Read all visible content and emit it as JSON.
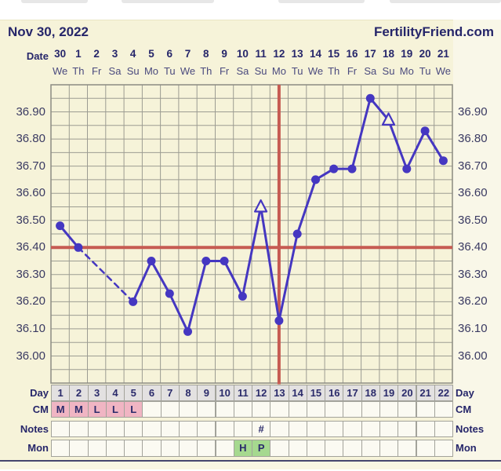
{
  "header": {
    "title": "Nov 30, 2022",
    "site": "FertilityFriend.com"
  },
  "axes": {
    "date_row_label": "Date",
    "dates": [
      "30",
      "1",
      "2",
      "3",
      "4",
      "5",
      "6",
      "7",
      "8",
      "9",
      "10",
      "11",
      "12",
      "13",
      "14",
      "15",
      "16",
      "17",
      "18",
      "19",
      "20",
      "21"
    ],
    "weekdays": [
      "We",
      "Th",
      "Fr",
      "Sa",
      "Su",
      "Mo",
      "Tu",
      "We",
      "Th",
      "Fr",
      "Sa",
      "Su",
      "Mo",
      "Tu",
      "We",
      "Th",
      "Fr",
      "Sa",
      "Su",
      "Mo",
      "Tu",
      "We"
    ],
    "temp_tick_labels": [
      "36.90",
      "36.80",
      "36.70",
      "36.60",
      "36.50",
      "36.40",
      "36.30",
      "36.20",
      "36.10",
      "36.00"
    ]
  },
  "chart_data": {
    "type": "line",
    "title": "Basal body temperature chart starting Nov 30, 2022",
    "x_cycle_days": [
      1,
      2,
      3,
      4,
      5,
      6,
      7,
      8,
      9,
      10,
      11,
      12,
      13,
      14,
      15,
      16,
      17,
      18,
      19,
      20,
      21,
      22
    ],
    "x_dates": [
      "30",
      "1",
      "2",
      "3",
      "4",
      "5",
      "6",
      "7",
      "8",
      "9",
      "10",
      "11",
      "12",
      "13",
      "14",
      "15",
      "16",
      "17",
      "18",
      "19",
      "20",
      "21"
    ],
    "temps": [
      36.48,
      36.4,
      null,
      null,
      36.2,
      36.35,
      36.23,
      36.09,
      36.35,
      36.35,
      36.22,
      36.55,
      36.13,
      36.45,
      36.65,
      36.69,
      36.69,
      36.95,
      36.87,
      36.69,
      36.83,
      36.72
    ],
    "markers": [
      "dot",
      "dot",
      null,
      null,
      "dot",
      "dot",
      "dot",
      "dot",
      "dot",
      "dot",
      "dot",
      "triangle",
      "dot",
      "dot",
      "dot",
      "dot",
      "dot",
      "dot",
      "triangle",
      "dot",
      "dot",
      "dot"
    ],
    "coverline_temp": 36.4,
    "vertical_line_day": 13,
    "ylim": [
      35.9,
      37.0
    ],
    "minor_step": 0.05,
    "major_step": 0.1,
    "grid": true,
    "missing_data_connector": "dashed line from day 2 to day 5"
  },
  "table": {
    "rows": [
      {
        "label": "Day",
        "values": [
          "1",
          "2",
          "3",
          "4",
          "5",
          "6",
          "7",
          "8",
          "9",
          "10",
          "11",
          "12",
          "13",
          "14",
          "15",
          "16",
          "17",
          "18",
          "19",
          "20",
          "21",
          "22"
        ],
        "default_bg": "#e3e1e1",
        "filled_bg": "#e3e1e1"
      },
      {
        "label": "CM",
        "values": [
          "M",
          "M",
          "L",
          "L",
          "L",
          "",
          "",
          "",
          "",
          "",
          "",
          "",
          "",
          "",
          "",
          "",
          "",
          "",
          "",
          "",
          "",
          ""
        ],
        "default_bg": "#fbfaf2",
        "filled_bg": "#f0b5c3"
      },
      {
        "label": "Notes",
        "values": [
          "",
          "",
          "",
          "",
          "",
          "",
          "",
          "",
          "",
          "",
          "",
          "#",
          "",
          "",
          "",
          "",
          "",
          "",
          "",
          "",
          "",
          ""
        ],
        "default_bg": "#fbfaf2",
        "filled_bg": "#fbfaf2"
      },
      {
        "label": "Mon",
        "values": [
          "",
          "",
          "",
          "",
          "",
          "",
          "",
          "",
          "",
          "",
          "H",
          "P",
          "",
          "",
          "",
          "",
          "",
          "",
          "",
          "",
          "",
          ""
        ],
        "default_bg": "#fbfaf2",
        "filled_bg": "#a6d98f"
      }
    ]
  },
  "colors": {
    "card_background": "#f6f3d9",
    "plot_line": "#4537c1",
    "red_line": "#c65b52",
    "grid_line": "#9c9c92",
    "grid_border": "#8b8b83",
    "navy_text": "#26266a",
    "marker_fill_open": "#f7f4dc"
  }
}
